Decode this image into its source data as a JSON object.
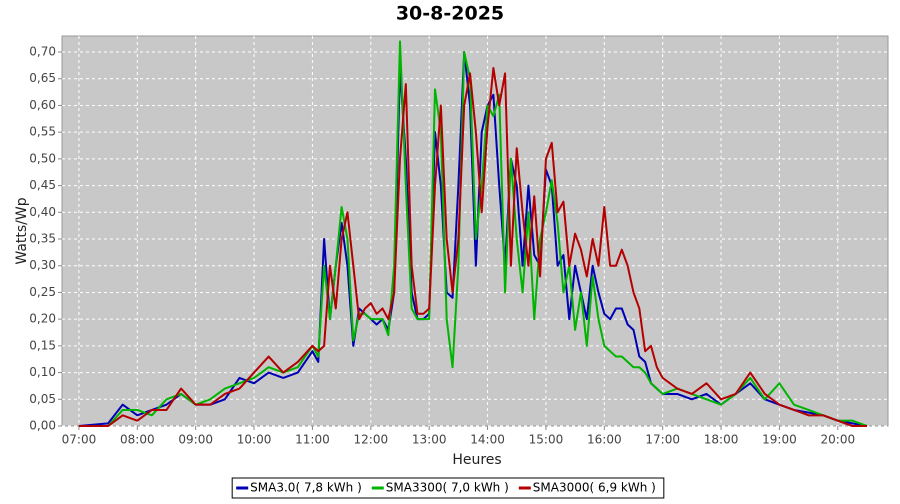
{
  "chart_data": {
    "type": "line",
    "title": "30-8-2025",
    "x_label": "Heures",
    "y_label": "Watts/Wp",
    "grid": true,
    "legend": "bottom",
    "xlim": [
      6.71,
      20.86
    ],
    "ylim": [
      0,
      0.73
    ],
    "xticks": [
      {
        "value": 7,
        "label": "07:00"
      },
      {
        "value": 8,
        "label": "08:00"
      },
      {
        "value": 9,
        "label": "09:00"
      },
      {
        "value": 10,
        "label": "10:00"
      },
      {
        "value": 11,
        "label": "11:00"
      },
      {
        "value": 12,
        "label": "12:00"
      },
      {
        "value": 13,
        "label": "13:00"
      },
      {
        "value": 14,
        "label": "14:00"
      },
      {
        "value": 15,
        "label": "15:00"
      },
      {
        "value": 16,
        "label": "16:00"
      },
      {
        "value": 17,
        "label": "17:00"
      },
      {
        "value": 18,
        "label": "18:00"
      },
      {
        "value": 19,
        "label": "19:00"
      },
      {
        "value": 20,
        "label": "20:00"
      }
    ],
    "yticks": [
      {
        "value": 0,
        "label": "0,00"
      },
      {
        "value": 0.05,
        "label": "0,05"
      },
      {
        "value": 0.1,
        "label": "0,10"
      },
      {
        "value": 0.15,
        "label": "0,15"
      },
      {
        "value": 0.2,
        "label": "0,20"
      },
      {
        "value": 0.25,
        "label": "0,25"
      },
      {
        "value": 0.3,
        "label": "0,30"
      },
      {
        "value": 0.35,
        "label": "0,35"
      },
      {
        "value": 0.4,
        "label": "0,40"
      },
      {
        "value": 0.45,
        "label": "0,45"
      },
      {
        "value": 0.5,
        "label": "0,50"
      },
      {
        "value": 0.55,
        "label": "0,55"
      },
      {
        "value": 0.6,
        "label": "0,60"
      },
      {
        "value": 0.65,
        "label": "0,65"
      },
      {
        "value": 0.7,
        "label": "0,70"
      }
    ],
    "x": [
      7.0,
      7.5,
      7.75,
      8.0,
      8.25,
      8.5,
      8.75,
      9.0,
      9.25,
      9.5,
      9.75,
      10.0,
      10.25,
      10.5,
      10.75,
      11.0,
      11.1,
      11.2,
      11.3,
      11.4,
      11.5,
      11.6,
      11.7,
      11.8,
      11.9,
      12.0,
      12.1,
      12.2,
      12.3,
      12.4,
      12.5,
      12.6,
      12.7,
      12.8,
      12.9,
      13.0,
      13.1,
      13.2,
      13.3,
      13.4,
      13.5,
      13.6,
      13.7,
      13.8,
      13.9,
      14.0,
      14.1,
      14.2,
      14.3,
      14.4,
      14.5,
      14.6,
      14.7,
      14.8,
      14.9,
      15.0,
      15.1,
      15.2,
      15.3,
      15.4,
      15.5,
      15.6,
      15.7,
      15.8,
      15.9,
      16.0,
      16.1,
      16.2,
      16.3,
      16.4,
      16.5,
      16.6,
      16.7,
      16.8,
      16.9,
      17.0,
      17.25,
      17.5,
      17.75,
      18.0,
      18.25,
      18.5,
      18.75,
      19.0,
      19.25,
      19.5,
      19.75,
      20.0,
      20.25,
      20.5
    ],
    "series": [
      {
        "name": "SMA3.0( 7,8 kWh )",
        "color": "#0000b4",
        "values": [
          0,
          0.005,
          0.04,
          0.02,
          0.03,
          0.04,
          0.06,
          0.04,
          0.04,
          0.05,
          0.09,
          0.08,
          0.1,
          0.09,
          0.1,
          0.14,
          0.12,
          0.35,
          0.2,
          0.3,
          0.38,
          0.3,
          0.15,
          0.22,
          0.21,
          0.2,
          0.19,
          0.2,
          0.18,
          0.25,
          0.67,
          0.5,
          0.25,
          0.2,
          0.2,
          0.21,
          0.55,
          0.45,
          0.25,
          0.24,
          0.45,
          0.7,
          0.6,
          0.3,
          0.55,
          0.6,
          0.62,
          0.45,
          0.3,
          0.5,
          0.45,
          0.3,
          0.45,
          0.32,
          0.3,
          0.48,
          0.45,
          0.3,
          0.32,
          0.2,
          0.3,
          0.25,
          0.2,
          0.3,
          0.25,
          0.21,
          0.2,
          0.22,
          0.22,
          0.19,
          0.18,
          0.13,
          0.12,
          0.08,
          0.07,
          0.06,
          0.06,
          0.05,
          0.06,
          0.04,
          0.06,
          0.08,
          0.05,
          0.04,
          0.03,
          0.025,
          0.02,
          0.01,
          0.005,
          0
        ]
      },
      {
        "name": "SMA3300( 7,0 kWh )",
        "color": "#00b400",
        "values": [
          0,
          0,
          0.03,
          0.03,
          0.02,
          0.05,
          0.06,
          0.04,
          0.05,
          0.07,
          0.08,
          0.09,
          0.11,
          0.1,
          0.11,
          0.15,
          0.13,
          0.3,
          0.2,
          0.3,
          0.41,
          0.35,
          0.16,
          0.21,
          0.21,
          0.2,
          0.2,
          0.2,
          0.17,
          0.3,
          0.72,
          0.45,
          0.22,
          0.2,
          0.2,
          0.2,
          0.63,
          0.55,
          0.2,
          0.11,
          0.3,
          0.7,
          0.65,
          0.35,
          0.45,
          0.6,
          0.58,
          0.62,
          0.25,
          0.5,
          0.35,
          0.25,
          0.4,
          0.2,
          0.35,
          0.4,
          0.46,
          0.38,
          0.25,
          0.3,
          0.18,
          0.25,
          0.15,
          0.28,
          0.2,
          0.15,
          0.14,
          0.13,
          0.13,
          0.12,
          0.11,
          0.11,
          0.1,
          0.08,
          0.07,
          0.06,
          0.07,
          0.06,
          0.05,
          0.04,
          0.06,
          0.09,
          0.05,
          0.08,
          0.04,
          0.03,
          0.02,
          0.01,
          0.01,
          0
        ]
      },
      {
        "name": "SMA3000( 6,9 kWh )",
        "color": "#b40000",
        "values": [
          0,
          0,
          0.02,
          0.01,
          0.03,
          0.03,
          0.07,
          0.04,
          0.04,
          0.06,
          0.07,
          0.1,
          0.13,
          0.1,
          0.12,
          0.15,
          0.14,
          0.15,
          0.3,
          0.22,
          0.35,
          0.4,
          0.3,
          0.2,
          0.22,
          0.23,
          0.21,
          0.22,
          0.2,
          0.25,
          0.5,
          0.64,
          0.3,
          0.21,
          0.21,
          0.22,
          0.45,
          0.6,
          0.35,
          0.25,
          0.35,
          0.6,
          0.66,
          0.55,
          0.4,
          0.56,
          0.67,
          0.6,
          0.66,
          0.3,
          0.52,
          0.4,
          0.3,
          0.43,
          0.28,
          0.5,
          0.53,
          0.4,
          0.42,
          0.3,
          0.36,
          0.33,
          0.28,
          0.35,
          0.3,
          0.41,
          0.3,
          0.3,
          0.33,
          0.3,
          0.25,
          0.22,
          0.14,
          0.15,
          0.11,
          0.09,
          0.07,
          0.06,
          0.08,
          0.05,
          0.06,
          0.1,
          0.06,
          0.04,
          0.03,
          0.02,
          0.02,
          0.01,
          0,
          0
        ]
      }
    ]
  }
}
